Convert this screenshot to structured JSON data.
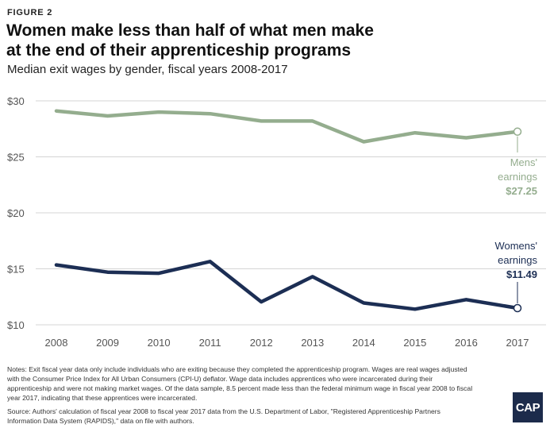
{
  "figure_label": "FIGURE 2",
  "title": "Women make less than half of what men make at the end of their apprenticeship programs",
  "subtitle": "Median exit wages by gender, fiscal years 2008-2017",
  "notes": "Notes: Exit fiscal year data only include individuals who are exiting because they completed the apprenticeship program. Wages are real wages adjusted with the Consumer Price Index for All Urban Consumers (CPI-U) deflator. Wage data includes apprentices who were incarcerated during their apprenticeship and were not making market wages. Of the data sample, 8.5 percent made less than the federal minimum wage in fiscal year 2008 to fiscal year 2017, indicating that these apprentices were incarcerated.",
  "source": "Source: Authors' calculation of fiscal year 2008 to fiscal year 2017 data from the U.S. Department of Labor, \"Registered Apprenticeship Partners Information Data System (RAPIDS),\" data on file with authors.",
  "logo_text": "CAP",
  "chart_data": {
    "type": "line",
    "x": [
      "2008",
      "2009",
      "2010",
      "2011",
      "2012",
      "2013",
      "2014",
      "2015",
      "2016",
      "2017"
    ],
    "ylim": [
      10,
      30
    ],
    "y_ticks": [
      10,
      15,
      20,
      25,
      30
    ],
    "y_tick_labels": [
      "$10",
      "$15",
      "$20",
      "$25",
      "$30"
    ],
    "grid": true,
    "series": [
      {
        "name": "Mens' earnings",
        "color": "#94ad8e",
        "values": [
          29.1,
          28.65,
          29.0,
          28.85,
          28.2,
          28.2,
          26.35,
          27.15,
          26.7,
          27.25
        ],
        "label_lines": [
          "Mens'",
          "earnings"
        ],
        "end_label": "$27.25"
      },
      {
        "name": "Womens' earnings",
        "color": "#1c2e54",
        "values": [
          15.35,
          14.7,
          14.6,
          15.65,
          12.05,
          14.3,
          11.95,
          11.4,
          12.25,
          11.49
        ],
        "label_lines": [
          "Womens'",
          "earnings"
        ],
        "end_label": "$11.49"
      }
    ]
  }
}
